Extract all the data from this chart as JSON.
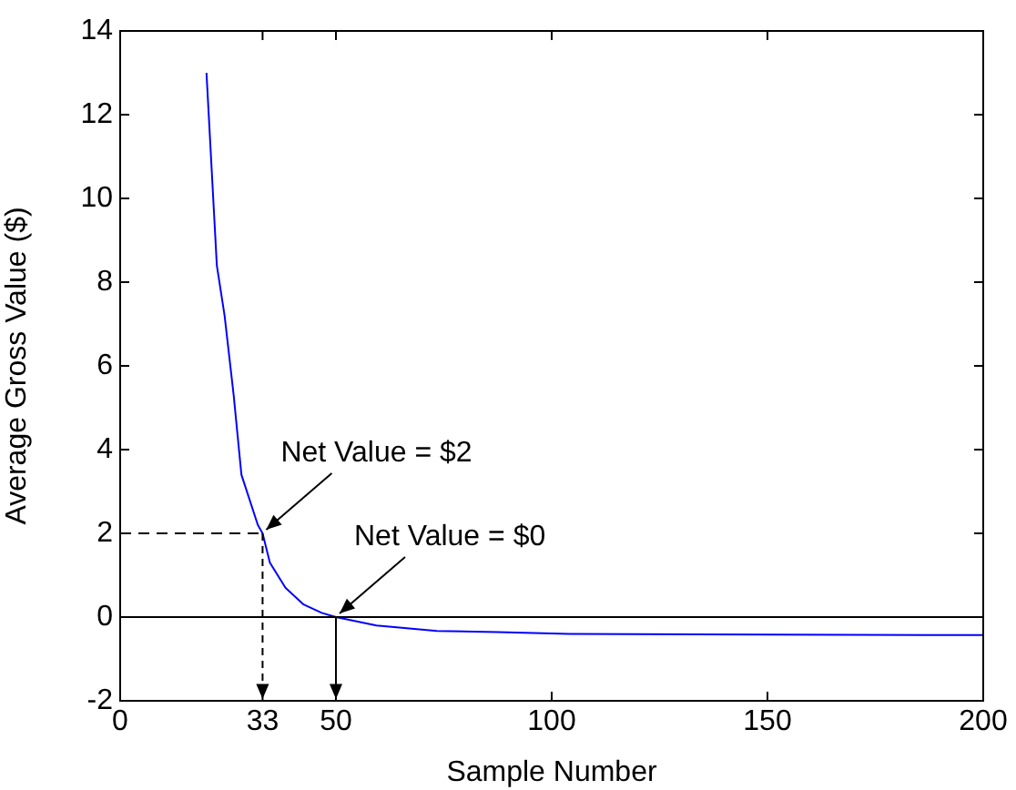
{
  "chart_data": {
    "type": "line",
    "xlabel": "Sample Number",
    "ylabel": "Average Gross Value ($)",
    "series": [
      {
        "color": "#0000ff",
        "x": [
          20,
          22.4,
          24.2,
          26.3,
          28.1,
          31.9,
          33,
          34.7,
          38.3,
          42.5,
          46.7,
          50,
          59.4,
          73.4,
          87.5,
          104,
          150,
          200
        ],
        "values": [
          13,
          8.4,
          7.2,
          5.3,
          3.4,
          2.2,
          2,
          1.3,
          0.7,
          0.3,
          0.1,
          0,
          -0.2,
          -0.33,
          -0.36,
          -0.4,
          -0.42,
          -0.43
        ]
      }
    ],
    "xlim": [
      0,
      200
    ],
    "xticks": [
      0,
      33,
      50,
      100,
      150,
      200
    ],
    "ylim": [
      -2,
      14
    ],
    "yticks": [
      -2,
      0,
      2,
      4,
      6,
      8,
      10,
      12,
      14
    ],
    "ref_lines": [
      {
        "axis": "y",
        "value": 0,
        "color": "#000000"
      },
      {
        "axis": "y",
        "value": 2,
        "color": "#000000",
        "line_style": "dashed"
      }
    ],
    "annotations": [
      {
        "text": "Net Value = $2",
        "x": 33,
        "y": 2
      },
      {
        "text": "Net Value = $0",
        "x": 50,
        "y": 0
      }
    ],
    "grid": false,
    "legend": false,
    "marker": "none",
    "line_style": "solid"
  }
}
